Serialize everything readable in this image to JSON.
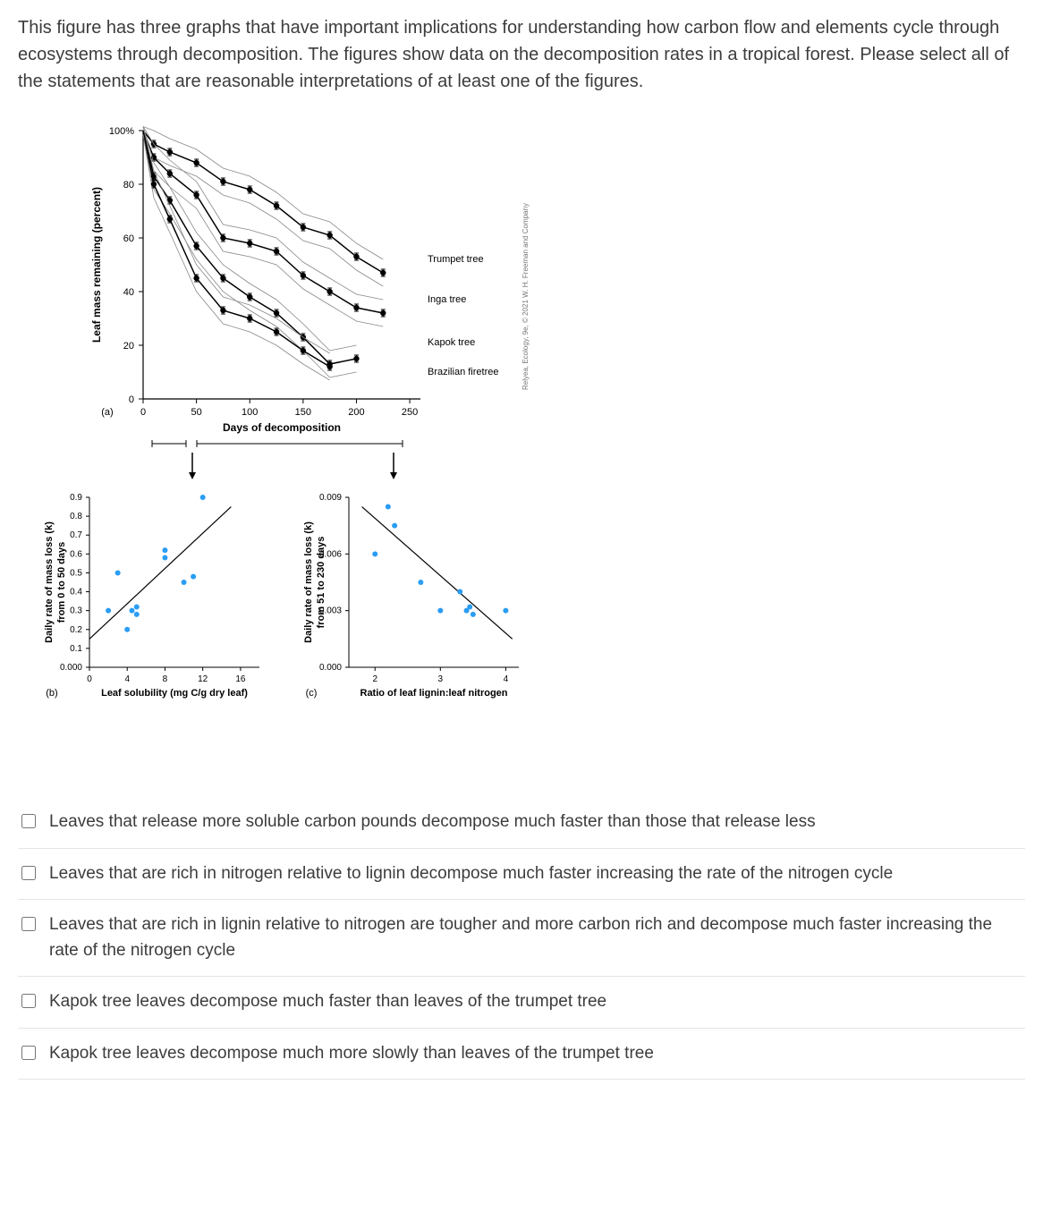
{
  "question": "This figure has three graphs that have important implications for understanding how carbon flow and elements cycle through ecosystems through decomposition. The figures show data on the decomposition rates in a tropical forest.  Please select all of the statements that are reasonable interpretations of at least one of the figures.",
  "citation": "Relyea, Ecology, 9e, © 2021 W. H. Freeman and Company",
  "panel_a": {
    "label": "(a)",
    "ylabel": "Leaf mass remaining (percent)",
    "xlabel": "Days of decomposition",
    "xlim": [
      0,
      260
    ],
    "ylim": [
      0,
      100
    ],
    "xticks": [
      0,
      50,
      100,
      150,
      200,
      250
    ],
    "yticks": [
      0,
      20,
      40,
      60,
      80
    ],
    "ytick_label_100": "100%",
    "series": [
      {
        "name": "Trumpet tree",
        "points": [
          [
            10,
            95
          ],
          [
            25,
            92
          ],
          [
            50,
            88
          ],
          [
            75,
            81
          ],
          [
            100,
            78
          ],
          [
            125,
            72
          ],
          [
            150,
            64
          ],
          [
            175,
            61
          ],
          [
            200,
            53
          ],
          [
            225,
            47
          ]
        ]
      },
      {
        "name": "Inga tree",
        "points": [
          [
            10,
            90
          ],
          [
            25,
            84
          ],
          [
            50,
            76
          ],
          [
            75,
            60
          ],
          [
            100,
            58
          ],
          [
            125,
            55
          ],
          [
            150,
            46
          ],
          [
            175,
            40
          ],
          [
            200,
            34
          ],
          [
            225,
            32
          ]
        ]
      },
      {
        "name": "Kapok tree",
        "points": [
          [
            10,
            83
          ],
          [
            25,
            74
          ],
          [
            50,
            57
          ],
          [
            75,
            45
          ],
          [
            100,
            38
          ],
          [
            125,
            32
          ],
          [
            150,
            23
          ],
          [
            175,
            13
          ],
          [
            200,
            15
          ]
        ]
      },
      {
        "name": "Brazilian firetree",
        "points": [
          [
            10,
            80
          ],
          [
            25,
            67
          ],
          [
            50,
            45
          ],
          [
            75,
            33
          ],
          [
            100,
            30
          ],
          [
            125,
            25
          ],
          [
            150,
            18
          ],
          [
            175,
            12
          ]
        ]
      }
    ],
    "curve_color": "#000000",
    "band_color": "#888888",
    "point_color": "#000000",
    "err_bar": 4
  },
  "panel_b": {
    "label": "(b)",
    "ylabel": "Daily rate of mass loss (k)",
    "ylabel2": "from 0 to 50 days",
    "xlabel": "Leaf solubility (mg C/g dry leaf)",
    "xlim": [
      0,
      18
    ],
    "ylim": [
      0,
      0.9
    ],
    "xticks": [
      0,
      4,
      8,
      12,
      16
    ],
    "yticks": [
      0.0,
      0.1,
      0.2,
      0.3,
      0.4,
      0.5,
      0.6,
      0.7,
      0.8,
      0.9
    ],
    "points": [
      [
        2,
        0.3
      ],
      [
        3,
        0.5
      ],
      [
        4,
        0.2
      ],
      [
        4.5,
        0.3
      ],
      [
        5,
        0.32
      ],
      [
        5,
        0.28
      ],
      [
        8,
        0.58
      ],
      [
        8,
        0.62
      ],
      [
        10,
        0.45
      ],
      [
        11,
        0.48
      ],
      [
        12,
        0.9
      ]
    ],
    "line": [
      [
        0,
        0.15
      ],
      [
        15,
        0.85
      ]
    ],
    "point_color": "#2a9df4",
    "line_color": "#000000"
  },
  "panel_c": {
    "label": "(c)",
    "ylabel": "Daily rate of mass loss (k)",
    "ylabel2": "from 51 to 230 days",
    "xlabel": "Ratio of leaf lignin:leaf nitrogen",
    "xlim": [
      1.6,
      4.2
    ],
    "ylim": [
      0,
      0.009
    ],
    "xticks": [
      2,
      3,
      4
    ],
    "yticks": [
      0.0,
      0.003,
      0.006,
      0.009
    ],
    "points": [
      [
        2.0,
        0.006
      ],
      [
        2.2,
        0.0085
      ],
      [
        2.3,
        0.0075
      ],
      [
        2.7,
        0.0045
      ],
      [
        3.0,
        0.003
      ],
      [
        3.3,
        0.004
      ],
      [
        3.4,
        0.003
      ],
      [
        3.45,
        0.0032
      ],
      [
        3.5,
        0.0028
      ],
      [
        4.0,
        0.003
      ]
    ],
    "line": [
      [
        1.8,
        0.0085
      ],
      [
        4.1,
        0.0015
      ]
    ],
    "point_color": "#2a9df4",
    "line_color": "#000000"
  },
  "choices": [
    "Leaves that release more soluble carbon pounds decompose much faster than those that release less",
    "Leaves that are rich in nitrogen relative to lignin decompose much faster increasing the rate of the nitrogen cycle",
    "Leaves that are rich in lignin relative to nitrogen are tougher and more carbon rich and decompose much faster increasing the rate of the nitrogen cycle",
    "Kapok tree leaves decompose much faster than leaves of the trumpet tree",
    "Kapok tree leaves decompose much more slowly than leaves of the trumpet tree"
  ]
}
